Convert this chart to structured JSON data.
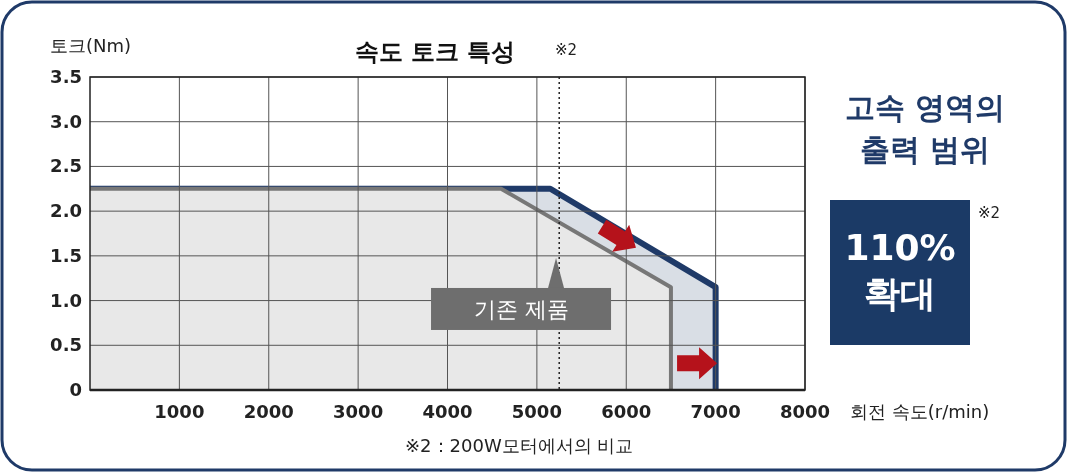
{
  "chart_data": {
    "type": "area",
    "title": "속도 토크 특성",
    "xlabel": "회전 속도(r/min)",
    "ylabel": "토크(Nm)",
    "series": [
      {
        "color": "#1f3a68",
        "x": [
          0,
          5150,
          7000,
          7000
        ],
        "values": [
          2.25,
          2.25,
          1.15,
          0
        ]
      },
      {
        "name": "기존 제품",
        "color": "#777777",
        "x": [
          0,
          4600,
          6500,
          6500
        ],
        "values": [
          2.25,
          2.25,
          1.15,
          0
        ]
      }
    ],
    "xlim": [
      0,
      8000
    ],
    "ylim": [
      0,
      3.5
    ],
    "xticks": [
      1000,
      2000,
      3000,
      4000,
      5000,
      6000,
      7000,
      8000
    ],
    "yticks": [
      0,
      0.5,
      {
        "value": 1,
        "label": "1.0"
      },
      1.5,
      {
        "value": 2,
        "label": "2.0"
      },
      2.5,
      {
        "value": 3,
        "label": "3.0"
      },
      3.5
    ],
    "grid": true,
    "ref_lines": [
      {
        "axis": "x",
        "value": 5250,
        "color": "#222222",
        "line_style": "dotted"
      }
    ],
    "annotations": [
      "※2",
      "고속 영역의 출력 범위",
      "110% 확대",
      "※2",
      "※2：200W모터에서의 비교"
    ]
  }
}
